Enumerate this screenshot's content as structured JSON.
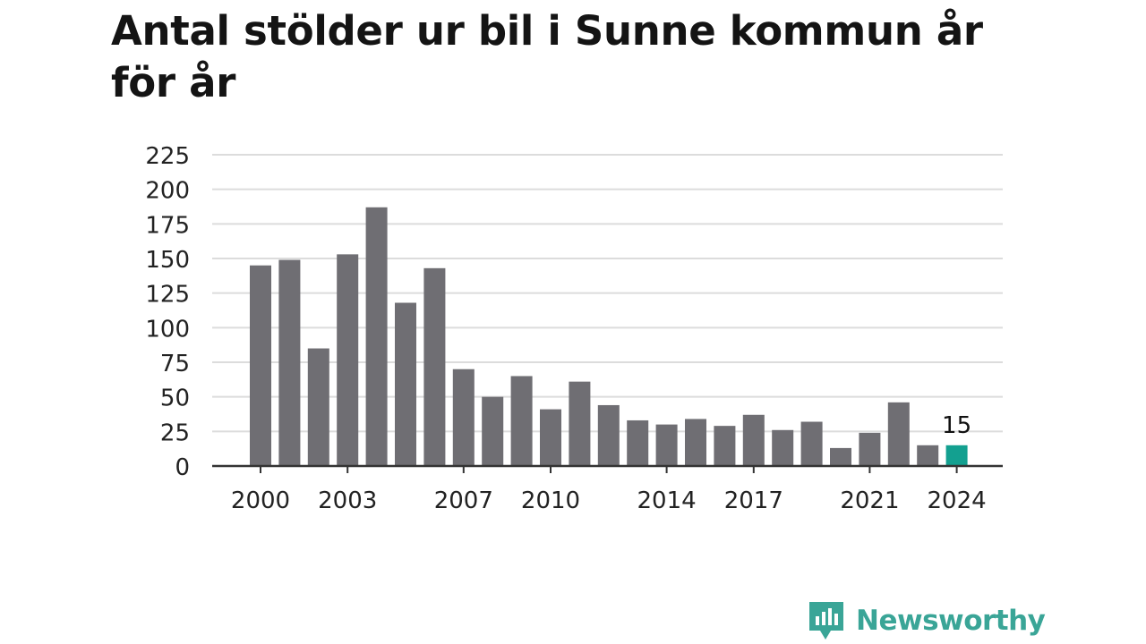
{
  "chart_data": {
    "type": "bar",
    "title": "Antal stölder ur bil i Sunne kommun år för år",
    "categories": [
      "2000",
      "2001",
      "2002",
      "2003",
      "2004",
      "2005",
      "2006",
      "2007",
      "2008",
      "2009",
      "2010",
      "2011",
      "2012",
      "2013",
      "2014",
      "2015",
      "2016",
      "2017",
      "2018",
      "2019",
      "2020",
      "2021",
      "2022",
      "2023",
      "2024"
    ],
    "values": [
      145,
      149,
      85,
      153,
      187,
      118,
      143,
      70,
      50,
      65,
      41,
      61,
      44,
      33,
      30,
      34,
      29,
      37,
      26,
      32,
      13,
      24,
      46,
      15,
      15
    ],
    "x_tick_labels": [
      "2000",
      "2003",
      "2007",
      "2010",
      "2014",
      "2017",
      "2021",
      "2024"
    ],
    "y_ticks": [
      "0",
      "25",
      "50",
      "75",
      "100",
      "125",
      "150",
      "175",
      "200",
      "225"
    ],
    "ylim": [
      0,
      225
    ],
    "grid": true,
    "highlight": {
      "category": "2024",
      "label": "15"
    },
    "colors": {
      "bar": "#6f6e73",
      "highlight": "#13a090",
      "grid": "#dcdcdc",
      "axis": "#333333"
    }
  },
  "brand": {
    "name": "Newsworthy",
    "color": "#3aa597",
    "icon": "newsworthy-logo-icon"
  }
}
